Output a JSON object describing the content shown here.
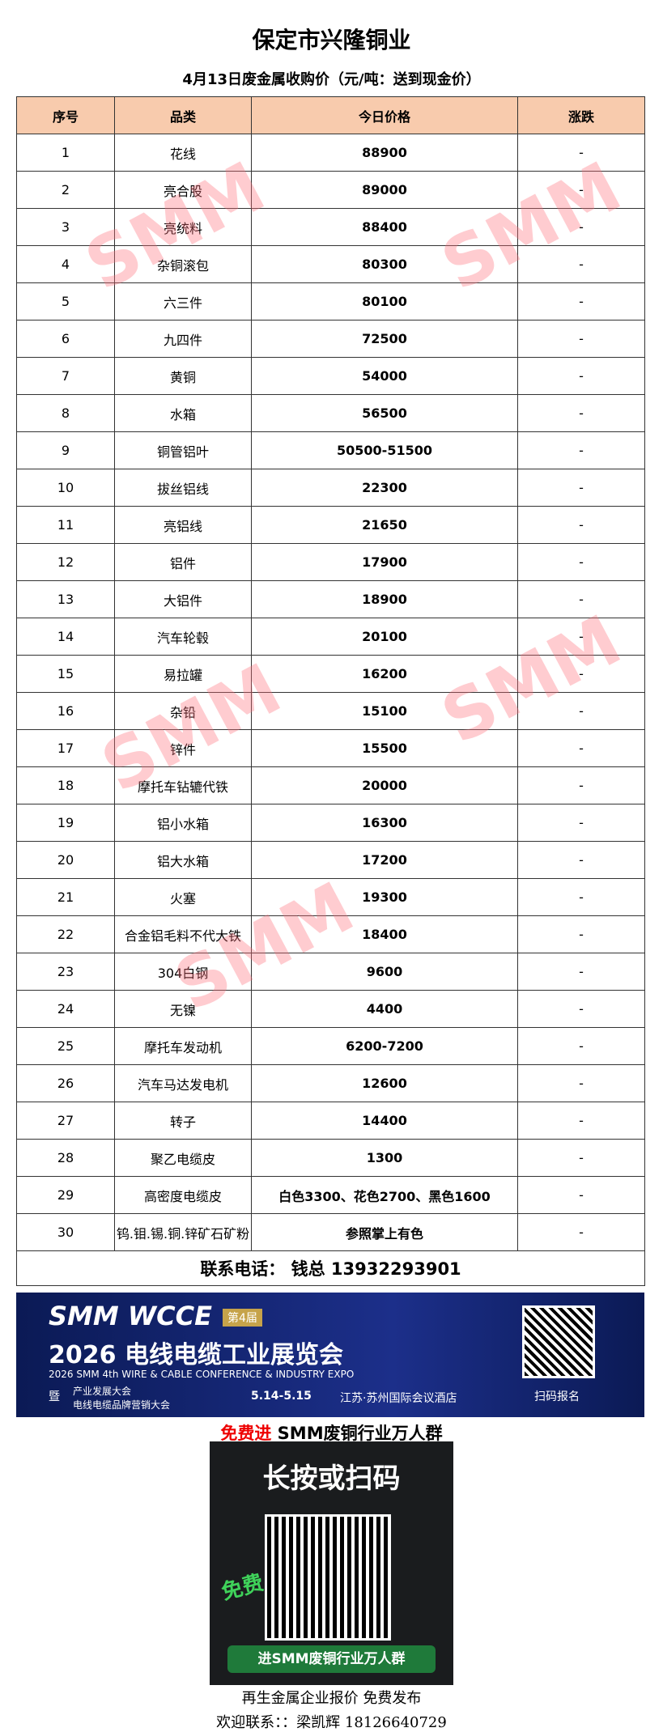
{
  "header": {
    "title": "保定市兴隆铜业",
    "subtitle": "4月13日废金属收购价（元/吨：送到现金价）"
  },
  "table": {
    "header": [
      "序号",
      "品类",
      "今日价格",
      "涨跌"
    ],
    "rows": [
      [
        "1",
        "花线",
        "88900",
        "-"
      ],
      [
        "2",
        "亮合股",
        "89000",
        "-"
      ],
      [
        "3",
        "亮统料",
        "88400",
        "-"
      ],
      [
        "4",
        "杂铜滚包",
        "80300",
        "-"
      ],
      [
        "5",
        "六三件",
        "80100",
        "-"
      ],
      [
        "6",
        "九四件",
        "72500",
        "-"
      ],
      [
        "7",
        "黄铜",
        "54000",
        "-"
      ],
      [
        "8",
        "水箱",
        "56500",
        "-"
      ],
      [
        "9",
        "铜管铝叶",
        "50500-51500",
        "-"
      ],
      [
        "10",
        "拔丝铝线",
        "22300",
        "-"
      ],
      [
        "11",
        "亮铝线",
        "21650",
        "-"
      ],
      [
        "12",
        "铝件",
        "17900",
        "-"
      ],
      [
        "13",
        "大铝件",
        "18900",
        "-"
      ],
      [
        "14",
        "汽车轮毂",
        "20100",
        "-"
      ],
      [
        "15",
        "易拉罐",
        "16200",
        "-"
      ],
      [
        "16",
        "杂铅",
        "15100",
        "-"
      ],
      [
        "17",
        "锌件",
        "15500",
        "-"
      ],
      [
        "18",
        "摩托车钻辘代铁",
        "20000",
        "-"
      ],
      [
        "19",
        "铝小水箱",
        "16300",
        "-"
      ],
      [
        "20",
        "铝大水箱",
        "17200",
        "-"
      ],
      [
        "21",
        "火塞",
        "19300",
        "-"
      ],
      [
        "22",
        "合金铝毛料不代大铁",
        "18400",
        "-"
      ],
      [
        "23",
        "304白钢",
        "9600",
        "-"
      ],
      [
        "24",
        "无镍",
        "4400",
        "-"
      ],
      [
        "25",
        "摩托车发动机",
        "6200-7200",
        "-"
      ],
      [
        "26",
        "汽车马达发电机",
        "12600",
        "-"
      ],
      [
        "27",
        "转子",
        "14400",
        "-"
      ],
      [
        "28",
        "聚乙电缆皮",
        "1300",
        "-"
      ],
      [
        "29",
        "高密度电缆皮",
        "白色3300、花色2700、黑色1600",
        "-"
      ],
      [
        "30",
        "钨.钼.锡.铜.锌矿石矿粉",
        "参照掌上有色",
        "-"
      ]
    ],
    "contact": "联系电话：  钱总 13932293901"
  },
  "watermark": "SMM",
  "banner": {
    "brand": "SMM WCCE",
    "edition": "第4届",
    "title": "2026 电线电缆工业展览会",
    "english": "2026 SMM 4th WIRE & CABLE CONFERENCE & INDUSTRY EXPO",
    "and": "暨",
    "events": [
      "产业发展大会",
      "电线电缆品牌营销大会"
    ],
    "date": "5.14-5.15",
    "venue": "江苏·苏州国际会议酒店",
    "scan": "扫码报名"
  },
  "group": {
    "free": "免费进",
    "name": " SMM废铜行业万人群",
    "poster_title": "长按或扫码",
    "poster_free": "免费",
    "poster_button": "进SMM废铜行业万人群"
  },
  "footer": {
    "line1": "再生金属企业报价  免费发布",
    "line2": "欢迎联系：：梁凯辉  18126640729"
  }
}
